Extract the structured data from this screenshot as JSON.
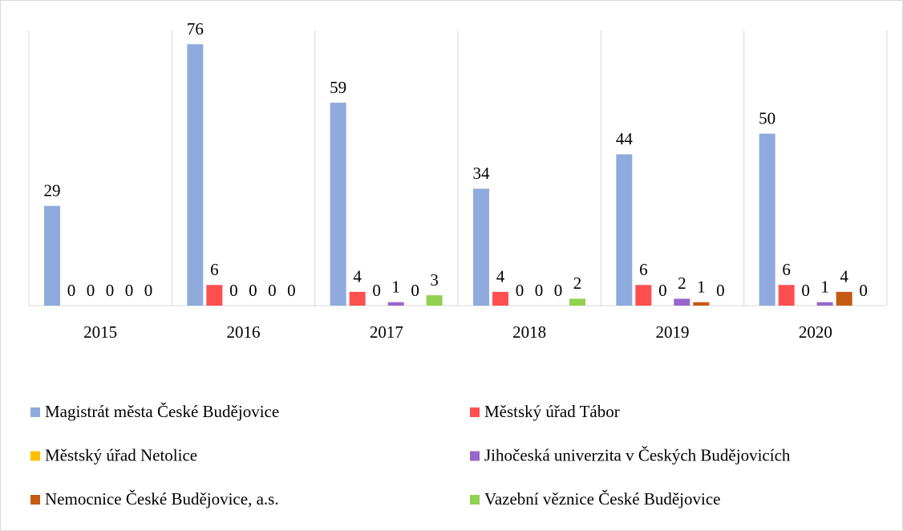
{
  "chart_data": {
    "type": "bar",
    "categories": [
      "2015",
      "2016",
      "2017",
      "2018",
      "2019",
      "2020"
    ],
    "ylim": [
      0,
      80
    ],
    "series": [
      {
        "name": "Magistrát města České Budějovice",
        "color": "#8faadc",
        "values": [
          29,
          76,
          59,
          34,
          44,
          50
        ]
      },
      {
        "name": "Městský úřad Tábor",
        "color": "#ff4f4f",
        "values": [
          0,
          6,
          4,
          4,
          6,
          6
        ]
      },
      {
        "name": "Městský úřad Netolice",
        "color": "#ffc000",
        "values": [
          0,
          0,
          0,
          0,
          0,
          0
        ]
      },
      {
        "name": "Jihočeská univerzita v Českých Budějovicích",
        "color": "#9966cc",
        "values": [
          0,
          0,
          1,
          0,
          2,
          1
        ]
      },
      {
        "name": "Nemocnice České Budějovice, a.s.",
        "color": "#c55a11",
        "values": [
          0,
          0,
          0,
          0,
          1,
          4
        ]
      },
      {
        "name": "Vazební věznice České Budějovice",
        "color": "#92d050",
        "values": [
          0,
          0,
          3,
          2,
          0,
          0
        ]
      }
    ]
  }
}
